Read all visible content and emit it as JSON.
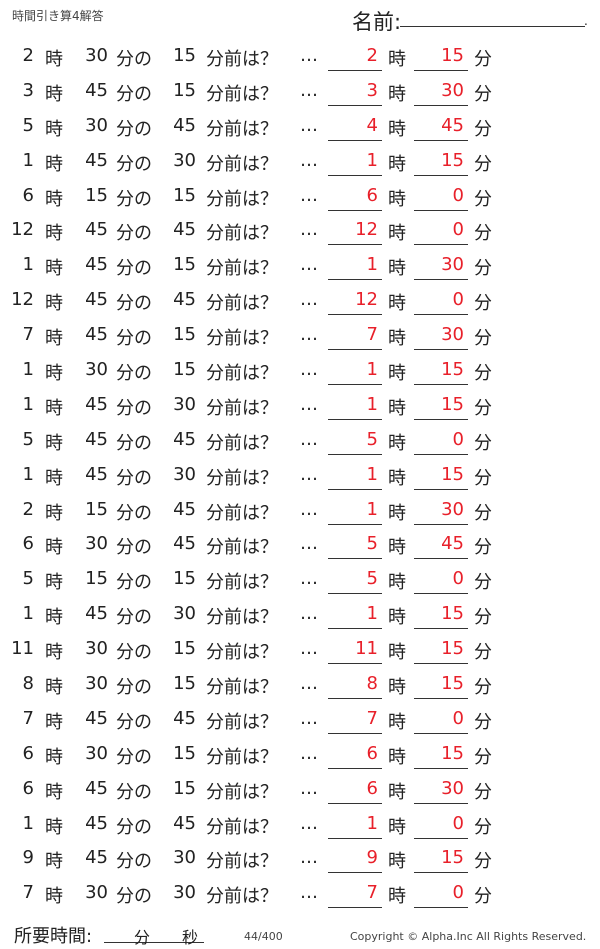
{
  "header": {
    "title": "時間引き算4解答",
    "name_label": "名前:",
    "name_dot": "."
  },
  "labels": {
    "hour": "時",
    "min_of": "分の",
    "before": "分前は？",
    "dots": "…",
    "min": "分"
  },
  "answer_color": "#e8202a",
  "rows": [
    {
      "h": "2",
      "m": "30",
      "d": "15",
      "ah": "2",
      "am": "15"
    },
    {
      "h": "3",
      "m": "45",
      "d": "15",
      "ah": "3",
      "am": "30"
    },
    {
      "h": "5",
      "m": "30",
      "d": "45",
      "ah": "4",
      "am": "45"
    },
    {
      "h": "1",
      "m": "45",
      "d": "30",
      "ah": "1",
      "am": "15"
    },
    {
      "h": "6",
      "m": "15",
      "d": "15",
      "ah": "6",
      "am": "0"
    },
    {
      "h": "12",
      "m": "45",
      "d": "45",
      "ah": "12",
      "am": "0"
    },
    {
      "h": "1",
      "m": "45",
      "d": "15",
      "ah": "1",
      "am": "30"
    },
    {
      "h": "12",
      "m": "45",
      "d": "45",
      "ah": "12",
      "am": "0"
    },
    {
      "h": "7",
      "m": "45",
      "d": "15",
      "ah": "7",
      "am": "30"
    },
    {
      "h": "1",
      "m": "30",
      "d": "15",
      "ah": "1",
      "am": "15"
    },
    {
      "h": "1",
      "m": "45",
      "d": "30",
      "ah": "1",
      "am": "15"
    },
    {
      "h": "5",
      "m": "45",
      "d": "45",
      "ah": "5",
      "am": "0"
    },
    {
      "h": "1",
      "m": "45",
      "d": "30",
      "ah": "1",
      "am": "15"
    },
    {
      "h": "2",
      "m": "15",
      "d": "45",
      "ah": "1",
      "am": "30"
    },
    {
      "h": "6",
      "m": "30",
      "d": "45",
      "ah": "5",
      "am": "45"
    },
    {
      "h": "5",
      "m": "15",
      "d": "15",
      "ah": "5",
      "am": "0"
    },
    {
      "h": "1",
      "m": "45",
      "d": "30",
      "ah": "1",
      "am": "15"
    },
    {
      "h": "11",
      "m": "30",
      "d": "15",
      "ah": "11",
      "am": "15"
    },
    {
      "h": "8",
      "m": "30",
      "d": "15",
      "ah": "8",
      "am": "15"
    },
    {
      "h": "7",
      "m": "45",
      "d": "45",
      "ah": "7",
      "am": "0"
    },
    {
      "h": "6",
      "m": "30",
      "d": "15",
      "ah": "6",
      "am": "15"
    },
    {
      "h": "6",
      "m": "45",
      "d": "15",
      "ah": "6",
      "am": "30"
    },
    {
      "h": "1",
      "m": "45",
      "d": "45",
      "ah": "1",
      "am": "0"
    },
    {
      "h": "9",
      "m": "45",
      "d": "30",
      "ah": "9",
      "am": "15"
    },
    {
      "h": "7",
      "m": "30",
      "d": "30",
      "ah": "7",
      "am": "0"
    }
  ],
  "footer": {
    "time_label": "所要時間:",
    "min": "分",
    "sec": "秒",
    "page": "44/400",
    "copyright": "Copyright ©  Alpha.Inc All Rights Reserved."
  }
}
